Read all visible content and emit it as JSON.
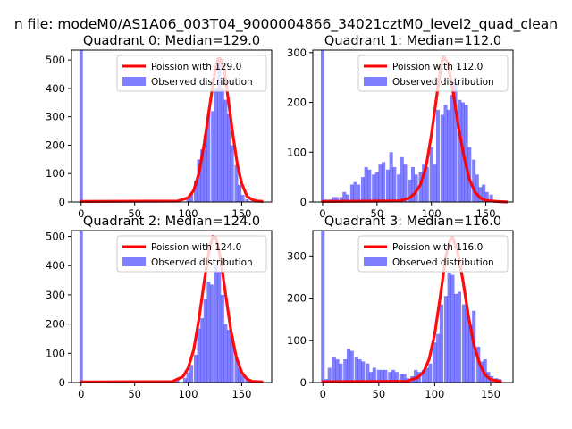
{
  "suptitle": "n file: modeM0/AS1A06_003T04_9000004866_34021cztM0_level2_quad_clean",
  "colors": {
    "obs": "#0000ff",
    "obs_opacity": 0.5,
    "fit": "#ff0000",
    "axis": "#000000"
  },
  "legend": {
    "fit_prefix": "Poission with ",
    "observed": "Observed distribution"
  },
  "chart_data": [
    {
      "type": "bar",
      "quadrant": 0,
      "title": "Quadrant 0: Median=129.0",
      "median": 129.0,
      "xlim": [
        -9,
        178
      ],
      "ylim": [
        0,
        535
      ],
      "xticks": [
        0,
        50,
        100,
        150
      ],
      "yticks": [
        0,
        100,
        200,
        300,
        400,
        500
      ],
      "fit_label": "Poission with 129.0",
      "legend_loc": "upper right",
      "zero_spike": 535,
      "bin_width": 3.3,
      "bins": [
        [
          70,
          2
        ],
        [
          80,
          3
        ],
        [
          90,
          5
        ],
        [
          100,
          15
        ],
        [
          103,
          30
        ],
        [
          107,
          75
        ],
        [
          110,
          150
        ],
        [
          113,
          185
        ],
        [
          116,
          235
        ],
        [
          119,
          310
        ],
        [
          123,
          320
        ],
        [
          126,
          400
        ],
        [
          129,
          510
        ],
        [
          132,
          400
        ],
        [
          135,
          360
        ],
        [
          138,
          310
        ],
        [
          141,
          200
        ],
        [
          145,
          130
        ],
        [
          148,
          60
        ],
        [
          151,
          25
        ],
        [
          155,
          10
        ],
        [
          158,
          3
        ]
      ],
      "fit_x": [
        -1,
        90,
        100,
        105,
        110,
        115,
        120,
        125,
        128,
        130,
        134,
        138,
        142,
        146,
        150,
        155,
        160,
        165,
        170
      ],
      "fit_y": [
        2,
        3,
        15,
        40,
        100,
        205,
        335,
        460,
        505,
        505,
        455,
        345,
        230,
        130,
        65,
        20,
        8,
        3,
        2
      ]
    },
    {
      "type": "bar",
      "quadrant": 1,
      "title": "Quadrant 1: Median=112.0",
      "median": 112.0,
      "xlim": [
        -9,
        175
      ],
      "ylim": [
        0,
        305
      ],
      "xticks": [
        0,
        50,
        100,
        150
      ],
      "yticks": [
        0,
        100,
        200,
        300
      ],
      "fit_label": "Poission with 112.0",
      "legend_loc": "upper right",
      "zero_spike": 305,
      "bin_width": 3.3,
      "bins": [
        [
          3,
          5
        ],
        [
          7,
          5
        ],
        [
          10,
          10
        ],
        [
          13,
          10
        ],
        [
          17,
          10
        ],
        [
          20,
          20
        ],
        [
          23,
          15
        ],
        [
          27,
          35
        ],
        [
          30,
          40
        ],
        [
          33,
          35
        ],
        [
          37,
          50
        ],
        [
          40,
          70
        ],
        [
          43,
          65
        ],
        [
          47,
          55
        ],
        [
          50,
          60
        ],
        [
          53,
          75
        ],
        [
          56,
          80
        ],
        [
          60,
          65
        ],
        [
          63,
          100
        ],
        [
          66,
          70
        ],
        [
          70,
          55
        ],
        [
          73,
          90
        ],
        [
          76,
          75
        ],
        [
          80,
          45
        ],
        [
          83,
          70
        ],
        [
          86,
          55
        ],
        [
          90,
          60
        ],
        [
          93,
          75
        ],
        [
          96,
          70
        ],
        [
          100,
          110
        ],
        [
          103,
          75
        ],
        [
          106,
          185
        ],
        [
          110,
          175
        ],
        [
          113,
          195
        ],
        [
          116,
          185
        ],
        [
          119,
          215
        ],
        [
          122,
          240
        ],
        [
          126,
          205
        ],
        [
          129,
          200
        ],
        [
          132,
          195
        ],
        [
          135,
          110
        ],
        [
          139,
          85
        ],
        [
          142,
          55
        ],
        [
          145,
          30
        ],
        [
          148,
          35
        ],
        [
          151,
          20
        ],
        [
          155,
          15
        ]
      ],
      "fit_x": [
        -1,
        70,
        80,
        85,
        90,
        95,
        100,
        105,
        109,
        111,
        115,
        120,
        125,
        130,
        135,
        140,
        145,
        150,
        160,
        170
      ],
      "fit_y": [
        1,
        2,
        8,
        18,
        35,
        70,
        135,
        215,
        275,
        292,
        280,
        220,
        150,
        90,
        45,
        20,
        8,
        3,
        1,
        0
      ]
    },
    {
      "type": "bar",
      "quadrant": 2,
      "title": "Quadrant 2: Median=124.0",
      "median": 124.0,
      "xlim": [
        -9,
        178
      ],
      "ylim": [
        0,
        520
      ],
      "xticks": [
        0,
        50,
        100,
        150
      ],
      "yticks": [
        0,
        100,
        200,
        300,
        400,
        500
      ],
      "fit_label": "Poission with 124.0",
      "legend_loc": "upper right",
      "zero_spike": 520,
      "bin_width": 3.3,
      "bins": [
        [
          70,
          2
        ],
        [
          80,
          3
        ],
        [
          90,
          8
        ],
        [
          97,
          15
        ],
        [
          100,
          35
        ],
        [
          103,
          60
        ],
        [
          107,
          95
        ],
        [
          110,
          185
        ],
        [
          113,
          220
        ],
        [
          116,
          285
        ],
        [
          119,
          345
        ],
        [
          122,
          335
        ],
        [
          126,
          400
        ],
        [
          129,
          380
        ],
        [
          132,
          300
        ],
        [
          135,
          200
        ],
        [
          138,
          180
        ],
        [
          141,
          160
        ],
        [
          145,
          85
        ],
        [
          148,
          50
        ],
        [
          151,
          25
        ],
        [
          155,
          15
        ],
        [
          158,
          5
        ]
      ],
      "fit_x": [
        -1,
        85,
        95,
        100,
        105,
        110,
        115,
        120,
        123,
        126,
        130,
        135,
        140,
        145,
        150,
        155,
        160,
        170
      ],
      "fit_y": [
        2,
        3,
        20,
        50,
        110,
        215,
        345,
        460,
        500,
        495,
        430,
        300,
        175,
        85,
        35,
        12,
        4,
        2
      ]
    },
    {
      "type": "bar",
      "quadrant": 3,
      "title": "Quadrant 3: Median=116.0",
      "median": 116.0,
      "xlim": [
        -9,
        170
      ],
      "ylim": [
        0,
        360
      ],
      "xticks": [
        0,
        50,
        100,
        150
      ],
      "yticks": [
        0,
        100,
        200,
        300
      ],
      "fit_label": "Poission with 116.0",
      "legend_loc": "upper right",
      "zero_spike": 360,
      "bin_width": 3.3,
      "bins": [
        [
          3,
          8
        ],
        [
          6,
          35
        ],
        [
          10,
          60
        ],
        [
          13,
          55
        ],
        [
          16,
          45
        ],
        [
          20,
          55
        ],
        [
          23,
          80
        ],
        [
          26,
          75
        ],
        [
          30,
          60
        ],
        [
          33,
          55
        ],
        [
          36,
          50
        ],
        [
          40,
          45
        ],
        [
          43,
          25
        ],
        [
          46,
          35
        ],
        [
          50,
          30
        ],
        [
          53,
          30
        ],
        [
          56,
          30
        ],
        [
          60,
          25
        ],
        [
          63,
          30
        ],
        [
          66,
          25
        ],
        [
          70,
          20
        ],
        [
          73,
          20
        ],
        [
          76,
          10
        ],
        [
          80,
          15
        ],
        [
          83,
          30
        ],
        [
          86,
          25
        ],
        [
          90,
          30
        ],
        [
          93,
          35
        ],
        [
          96,
          45
        ],
        [
          100,
          95
        ],
        [
          103,
          115
        ],
        [
          106,
          185
        ],
        [
          110,
          205
        ],
        [
          113,
          260
        ],
        [
          116,
          255
        ],
        [
          119,
          210
        ],
        [
          122,
          215
        ],
        [
          126,
          185
        ],
        [
          129,
          175
        ],
        [
          132,
          135
        ],
        [
          135,
          170
        ],
        [
          139,
          85
        ],
        [
          142,
          50
        ],
        [
          145,
          55
        ],
        [
          148,
          25
        ],
        [
          151,
          15
        ],
        [
          155,
          10
        ],
        [
          158,
          8
        ]
      ],
      "fit_x": [
        -1,
        75,
        85,
        90,
        95,
        100,
        105,
        110,
        114,
        116,
        120,
        125,
        130,
        135,
        140,
        145,
        150,
        160
      ],
      "fit_y": [
        2,
        3,
        12,
        25,
        55,
        115,
        205,
        300,
        340,
        345,
        315,
        245,
        160,
        90,
        45,
        18,
        7,
        2
      ]
    }
  ]
}
